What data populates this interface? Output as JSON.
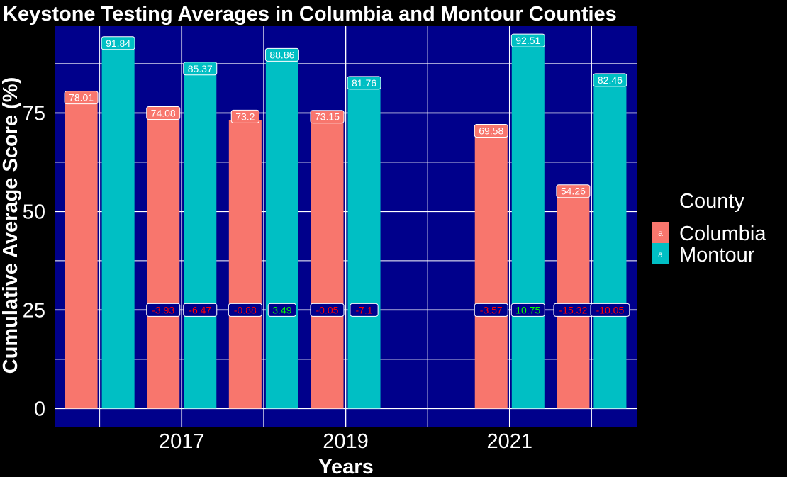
{
  "chart_data": {
    "type": "bar",
    "title": "Keystone Testing Averages in Columbia and Montour Counties",
    "xlabel": "Years",
    "ylabel": "Cumulative Average Score (%)",
    "x_ticks": [
      "2017",
      "2019",
      "2021"
    ],
    "y_ticks": [
      "0",
      "25",
      "50",
      "75"
    ],
    "ylim": [
      -4.8,
      97.2
    ],
    "xlim": [
      2015.45,
      2022.55
    ],
    "grid": true,
    "legend": {
      "title": "County",
      "position": "right",
      "key_text": "a",
      "entries": [
        "Columbia",
        "Montour"
      ]
    },
    "change_label_y": 25,
    "colors": {
      "Columbia": "#F8766D",
      "Montour": "#00BFC4",
      "panel": "#00008B",
      "background": "#000000",
      "grid": "#FFFFFF",
      "increase": "#00FF00",
      "decrease": "#FF0000"
    },
    "series": [
      {
        "name": "Columbia",
        "x": [
          2016,
          2017,
          2018,
          2019,
          2021,
          2022
        ],
        "values": [
          78.01,
          74.08,
          73.2,
          73.15,
          69.58,
          54.26
        ],
        "labels": [
          "78.01",
          "74.08",
          "73.2",
          "73.15",
          "69.58",
          "54.26"
        ],
        "changes": [
          null,
          "-3.93",
          "-0.88",
          "-0.05",
          "-3.57",
          "-15.32"
        ]
      },
      {
        "name": "Montour",
        "x": [
          2016,
          2017,
          2018,
          2019,
          2021,
          2022
        ],
        "values": [
          91.84,
          85.37,
          88.86,
          81.76,
          92.51,
          82.46
        ],
        "labels": [
          "91.84",
          "85.37",
          "88.86",
          "81.76",
          "92.51",
          "82.46"
        ],
        "changes": [
          null,
          "-6.47",
          "3.49",
          "-7.1",
          "10.75",
          "-10.05"
        ]
      }
    ]
  }
}
